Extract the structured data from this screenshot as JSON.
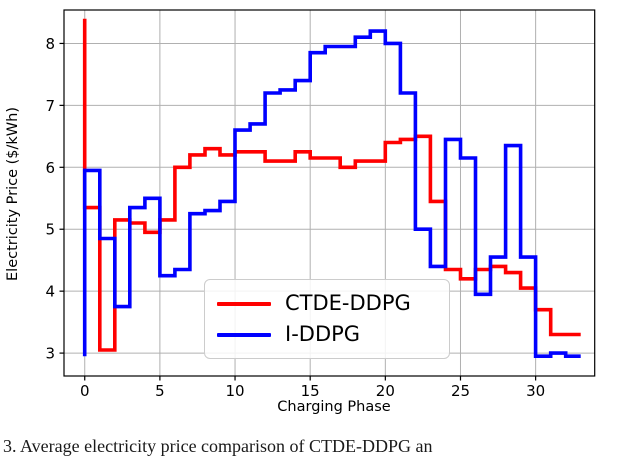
{
  "figure": {
    "caption": "3.  Average  electricity  price  comparison  of  CTDE-DDPG  an"
  },
  "legend": {
    "items": [
      {
        "label": "CTDE-DDPG",
        "color": "#ff0000"
      },
      {
        "label": "I-DDPG",
        "color": "#0000ff"
      }
    ]
  },
  "chart_data": {
    "type": "line",
    "subtype": "step-pre",
    "title": "",
    "xlabel": "Charging Phase",
    "ylabel": "Electricity Price ($/kWh)",
    "xticks": [
      0,
      5,
      10,
      15,
      20,
      25,
      30
    ],
    "yticks": [
      3,
      4,
      5,
      6,
      7,
      8
    ],
    "xlim": [
      -1.38,
      33.93
    ],
    "ylim": [
      2.63,
      8.54
    ],
    "grid": true,
    "grid_color": "#b0b0b0",
    "legend_position": "lower center",
    "x": [
      0,
      1,
      2,
      3,
      4,
      5,
      6,
      7,
      8,
      9,
      10,
      11,
      12,
      13,
      14,
      15,
      16,
      17,
      18,
      19,
      20,
      21,
      22,
      23,
      24,
      25,
      26,
      27,
      28,
      29,
      30,
      31,
      32,
      33
    ],
    "series": [
      {
        "name": "CTDE-DDPG",
        "color": "#ff0000",
        "values": [
          8.4,
          5.35,
          3.05,
          5.15,
          5.1,
          4.95,
          5.15,
          6.0,
          6.2,
          6.3,
          6.2,
          6.25,
          6.25,
          6.1,
          6.1,
          6.25,
          6.15,
          6.15,
          6.0,
          6.1,
          6.1,
          6.4,
          6.45,
          6.5,
          5.45,
          4.35,
          4.2,
          4.35,
          4.4,
          4.3,
          4.05,
          3.7,
          3.3,
          3.3
        ]
      },
      {
        "name": "I-DDPG",
        "color": "#0000ff",
        "values": [
          2.95,
          5.95,
          4.85,
          3.75,
          5.35,
          5.5,
          4.25,
          4.35,
          5.25,
          5.3,
          5.45,
          6.6,
          6.7,
          7.2,
          7.25,
          7.4,
          7.85,
          7.95,
          7.95,
          8.1,
          8.2,
          8.0,
          7.2,
          5.0,
          4.4,
          6.45,
          6.15,
          3.95,
          4.55,
          6.35,
          4.55,
          2.95,
          3.0,
          2.95
        ]
      }
    ]
  }
}
